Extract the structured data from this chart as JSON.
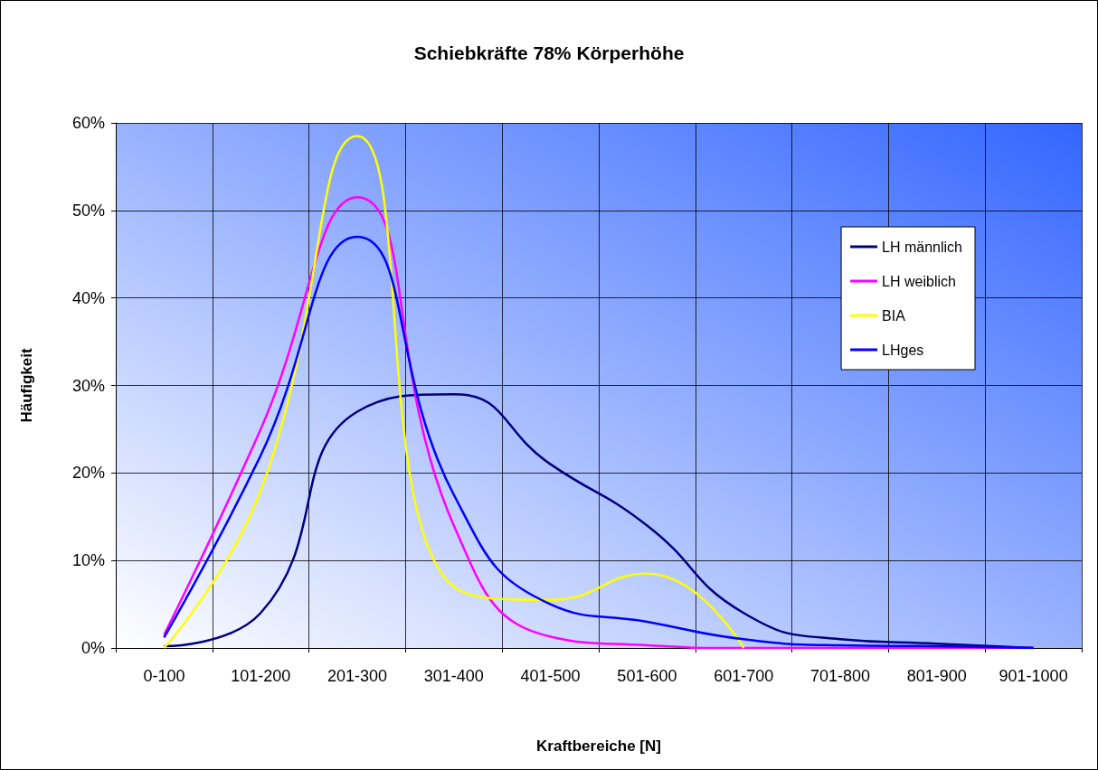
{
  "chart_data": {
    "type": "line",
    "title": "Schiebkräfte 78% Körperhöhe",
    "xlabel": "Kraftbereiche [N]",
    "ylabel": "Häufigkeit",
    "categories": [
      "0-100",
      "101-200",
      "201-300",
      "301-400",
      "401-500",
      "501-600",
      "601-700",
      "701-800",
      "801-900",
      "901-1000"
    ],
    "series": [
      {
        "name": "LH männlich",
        "color": "#000080",
        "values": [
          0.2,
          4,
          27,
          29,
          21,
          14,
          4,
          1,
          0.5,
          0
        ]
      },
      {
        "name": "LH weiblich",
        "color": "#ff00ff",
        "values": [
          1.5,
          25,
          51.5,
          14,
          1.3,
          0.3,
          0,
          0,
          0,
          0
        ]
      },
      {
        "name": "BIA",
        "color": "#ffff00",
        "values": [
          0,
          18,
          58.5,
          7,
          5.5,
          8.5,
          0,
          null,
          null,
          null
        ]
      },
      {
        "name": "LHges",
        "color": "#0000ff",
        "values": [
          1.2,
          22,
          47,
          17.5,
          5,
          3,
          1,
          0.3,
          0.2,
          0
        ]
      }
    ],
    "ylim": [
      0,
      60
    ],
    "yticks": [
      {
        "value": 0,
        "label": "0%"
      },
      {
        "value": 10,
        "label": "10%"
      },
      {
        "value": 20,
        "label": "20%"
      },
      {
        "value": 30,
        "label": "30%"
      },
      {
        "value": 40,
        "label": "40%"
      },
      {
        "value": 50,
        "label": "50%"
      },
      {
        "value": 60,
        "label": "60%"
      }
    ],
    "grid": true,
    "legend": "top right",
    "marker": "none",
    "line_style": "solid"
  }
}
